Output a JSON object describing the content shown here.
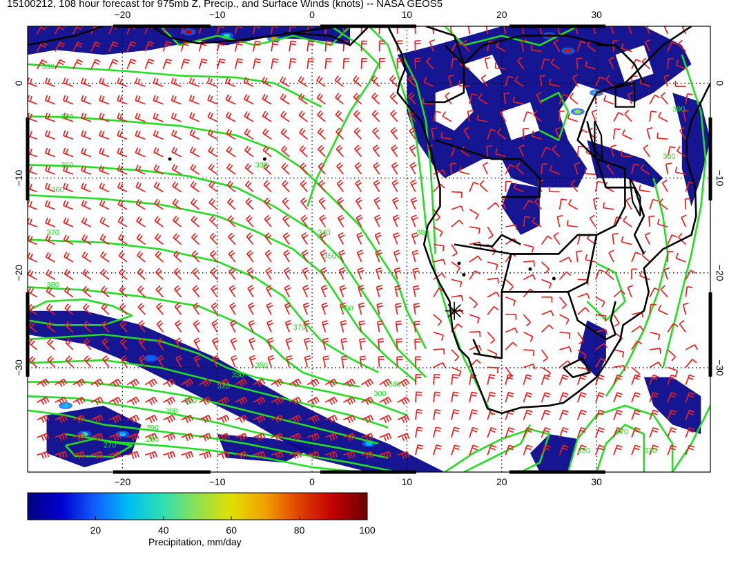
{
  "title": "15100212, 108 hour forecast for 975mb Z, Precip., and Surface Winds (knots) -- NASA GEOS5",
  "map": {
    "lon_range": [
      -30,
      42
    ],
    "lat_range": [
      -41,
      6
    ],
    "lon_ticks": [
      -20,
      -10,
      0,
      10,
      20,
      30
    ],
    "lat_ticks": [
      0,
      -10,
      -20,
      -30
    ],
    "lon_tick_labels": [
      "−20",
      "−10",
      "0",
      "10",
      "20",
      "30"
    ],
    "lat_tick_labels": [
      "0",
      "−10",
      "−20",
      "−30"
    ],
    "grid": "dotted",
    "coastline_color": "#000000",
    "contour_color": "#22dd22",
    "wind_barb_color": "#e82020",
    "precip_color": "#0a0a8c",
    "marker": {
      "symbol": "asterisk",
      "lon": 15,
      "lat": -24
    },
    "contour_labels": [
      {
        "text": "330",
        "lon": -28.5,
        "lat": 1.5
      },
      {
        "text": "340",
        "lon": -26.5,
        "lat": -3.8
      },
      {
        "text": "350",
        "lon": -26.5,
        "lat": -8.9
      },
      {
        "text": "360",
        "lon": -27.5,
        "lat": -11.5
      },
      {
        "text": "370",
        "lon": -28,
        "lat": -16
      },
      {
        "text": "380",
        "lon": -28,
        "lat": -21.5
      },
      {
        "text": "330",
        "lon": -6,
        "lat": -8.9
      },
      {
        "text": "340",
        "lon": 0.6,
        "lat": -16
      },
      {
        "text": "350",
        "lon": 1.2,
        "lat": -18.5
      },
      {
        "text": "360",
        "lon": 3,
        "lat": -24
      },
      {
        "text": "370",
        "lon": -2,
        "lat": -26
      },
      {
        "text": "350",
        "lon": -6,
        "lat": -30
      },
      {
        "text": "330",
        "lon": -8.5,
        "lat": -31
      },
      {
        "text": "320",
        "lon": -10,
        "lat": -32.2
      },
      {
        "text": "310",
        "lon": -13.5,
        "lat": -33.7
      },
      {
        "text": "300",
        "lon": -15.5,
        "lat": -34.8
      },
      {
        "text": "290",
        "lon": -17.5,
        "lat": -36.6
      },
      {
        "text": "280",
        "lon": -17.5,
        "lat": -37.8
      },
      {
        "text": "270",
        "lon": -22,
        "lat": -38.4
      },
      {
        "text": "340",
        "lon": 8,
        "lat": -32
      },
      {
        "text": "300",
        "lon": 6.5,
        "lat": -33
      },
      {
        "text": "380",
        "lon": 11,
        "lat": -16
      },
      {
        "text": "330",
        "lon": 35,
        "lat": -39
      },
      {
        "text": "350",
        "lon": 28,
        "lat": -39
      },
      {
        "text": "370",
        "lon": 32,
        "lat": -37
      },
      {
        "text": "360",
        "lon": 37,
        "lat": -8
      },
      {
        "text": "390",
        "lon": 38,
        "lat": -3
      }
    ]
  },
  "colorbar": {
    "title": "Precipitation, mm/day",
    "range": [
      0,
      100
    ],
    "tick_values": [
      20,
      40,
      60,
      80,
      100
    ],
    "tick_labels": [
      "20",
      "40",
      "60",
      "80",
      "100"
    ],
    "stops": [
      "#00007f",
      "#0000d0",
      "#1060ff",
      "#00c0f0",
      "#30e0b0",
      "#90e050",
      "#e0e000",
      "#f0a000",
      "#e04000",
      "#c00000",
      "#6a0000"
    ]
  }
}
